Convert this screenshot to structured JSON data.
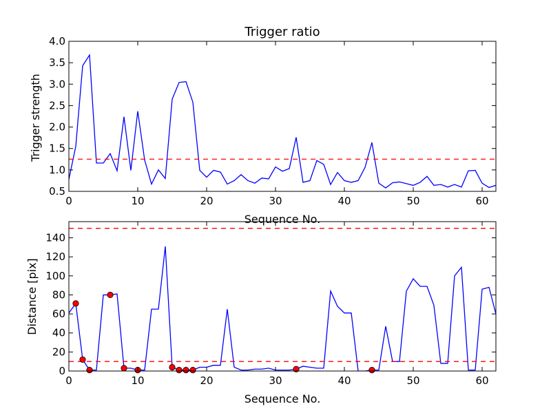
{
  "chart_data": [
    {
      "type": "line",
      "title": "Trigger ratio",
      "xlabel": "Sequence No.",
      "ylabel": "Trigger strength",
      "xlim": [
        0,
        62
      ],
      "ylim": [
        0.5,
        4.0
      ],
      "xticks": [
        0,
        10,
        20,
        30,
        40,
        50,
        60
      ],
      "yticks": [
        0.5,
        1.0,
        1.5,
        2.0,
        2.5,
        3.0,
        3.5,
        4.0
      ],
      "ytick_decimals": 1,
      "grid": false,
      "line_color": "#0000ff",
      "series": [
        {
          "x": [
            0,
            1,
            2,
            3,
            4,
            5,
            6,
            7,
            8,
            9,
            10,
            11,
            12,
            13,
            14,
            15,
            16,
            17,
            18,
            19,
            20,
            21,
            22,
            23,
            24,
            25,
            26,
            27,
            28,
            29,
            30,
            31,
            32,
            33,
            34,
            35,
            36,
            37,
            38,
            39,
            40,
            41,
            42,
            43,
            44,
            45,
            46,
            47,
            48,
            49,
            50,
            51,
            52,
            53,
            54,
            55,
            56,
            57,
            58,
            59,
            60,
            61,
            62
          ],
          "y": [
            0.78,
            1.55,
            3.43,
            3.68,
            1.16,
            1.16,
            1.38,
            0.98,
            2.24,
            0.99,
            2.37,
            1.23,
            0.67,
            1.0,
            0.8,
            2.65,
            3.04,
            3.06,
            2.58,
            0.99,
            0.83,
            0.99,
            0.95,
            0.67,
            0.75,
            0.89,
            0.75,
            0.69,
            0.81,
            0.79,
            1.07,
            0.97,
            1.03,
            1.76,
            0.71,
            0.75,
            1.22,
            1.13,
            0.66,
            0.94,
            0.75,
            0.71,
            0.75,
            1.06,
            1.64,
            0.69,
            0.58,
            0.7,
            0.72,
            0.68,
            0.64,
            0.71,
            0.85,
            0.64,
            0.66,
            0.6,
            0.66,
            0.6,
            0.98,
            0.99,
            0.69,
            0.59,
            0.64
          ]
        }
      ],
      "hlines": [
        {
          "y": 1.25,
          "color": "#ff0000",
          "style": "dashed"
        }
      ]
    },
    {
      "type": "line",
      "title": "",
      "xlabel": "Sequence No.",
      "ylabel": "Distance [pix]",
      "xlim": [
        0,
        62
      ],
      "ylim": [
        0,
        157
      ],
      "xticks": [
        0,
        10,
        20,
        30,
        40,
        50,
        60
      ],
      "yticks": [
        0,
        20,
        40,
        60,
        80,
        100,
        120,
        140
      ],
      "ytick_decimals": 0,
      "grid": false,
      "line_color": "#0000ff",
      "series": [
        {
          "x": [
            0,
            1,
            2,
            3,
            4,
            5,
            6,
            7,
            8,
            9,
            10,
            11,
            12,
            13,
            14,
            15,
            16,
            17,
            18,
            19,
            20,
            21,
            22,
            23,
            24,
            25,
            26,
            27,
            28,
            29,
            30,
            31,
            32,
            33,
            34,
            35,
            36,
            37,
            38,
            39,
            40,
            41,
            42,
            43,
            44,
            45,
            46,
            47,
            48,
            49,
            50,
            51,
            52,
            53,
            54,
            55,
            56,
            57,
            58,
            59,
            60,
            61,
            62
          ],
          "y": [
            61,
            71,
            12,
            1,
            1,
            80,
            80,
            81,
            3,
            3,
            1,
            1,
            65,
            65,
            131,
            4,
            1,
            1,
            1,
            4,
            4,
            6,
            6,
            65,
            4,
            1,
            1,
            2,
            2,
            3,
            1,
            1,
            1,
            2,
            5,
            4,
            3,
            3,
            84,
            68,
            61,
            61,
            0,
            0,
            1,
            1,
            47,
            10,
            10,
            84,
            97,
            89,
            89,
            69,
            8,
            8,
            100,
            109,
            1,
            1,
            86,
            88,
            60
          ]
        }
      ],
      "markers": {
        "x": [
          1,
          2,
          3,
          6,
          8,
          10,
          15,
          16,
          17,
          18,
          33,
          44
        ],
        "y": [
          71,
          12,
          1,
          80,
          3,
          1,
          4,
          1,
          1,
          1,
          2,
          1
        ],
        "color": "#ff0000"
      },
      "hlines": [
        {
          "y": 150,
          "color": "#ff0000",
          "style": "dashed"
        },
        {
          "y": 10,
          "color": "#ff0000",
          "style": "dashed"
        }
      ]
    }
  ]
}
